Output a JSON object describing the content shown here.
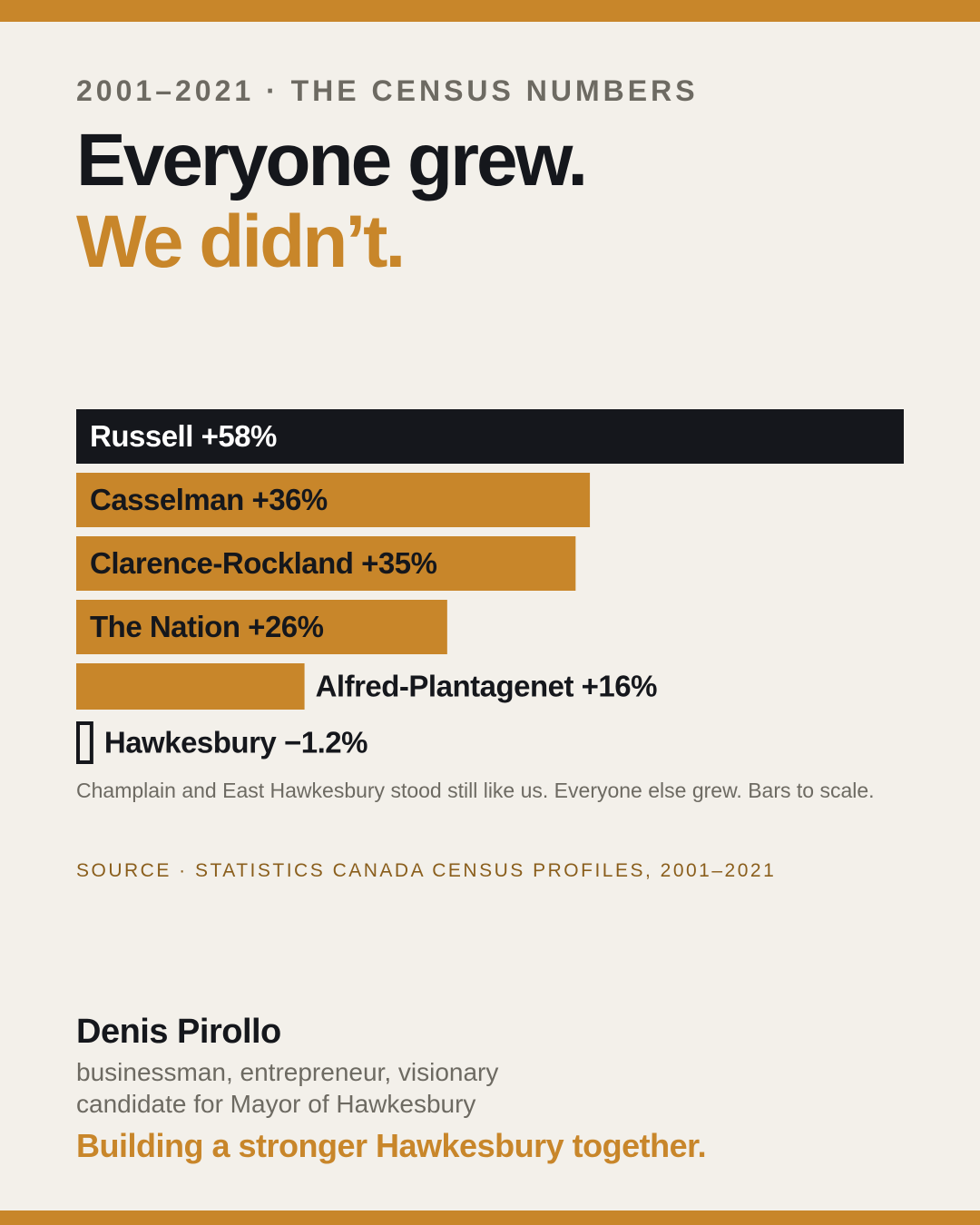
{
  "chart_data": {
    "type": "bar",
    "orientation": "horizontal",
    "kicker": "2001–2021 · THE CENSUS NUMBERS",
    "title": "Everyone grew.",
    "subtitle": "We didn’t.",
    "categories": [
      "Russell",
      "Casselman",
      "Clarence-Rockland",
      "The Nation",
      "Alfred-Plantagenet",
      "Hawkesbury"
    ],
    "values": [
      58,
      36,
      35,
      26,
      16,
      -1.2
    ],
    "value_labels": [
      "+58%",
      "+36%",
      "+35%",
      "+26%",
      "+16%",
      "−1.2%"
    ],
    "colors": [
      "#15171c",
      "#c8862a",
      "#c8862a",
      "#c8862a",
      "#c8862a",
      "none"
    ],
    "xlim": [
      0,
      58
    ],
    "note": "Champlain and East Hawkesbury stood still like us. Everyone else grew. Bars to scale.",
    "source": "SOURCE · STATISTICS CANADA CENSUS PROFILES, 2001–2021"
  },
  "footer": {
    "name": "Denis Pirollo",
    "roles": [
      "businessman, entrepreneur, visionary",
      "candidate for Mayor of Hawkesbury"
    ],
    "slogan": "Building a stronger Hawkesbury together."
  }
}
